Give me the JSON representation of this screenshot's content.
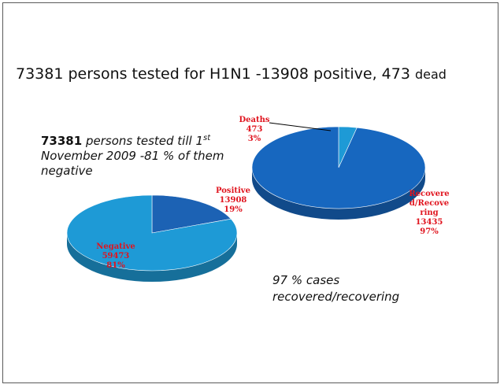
{
  "title": {
    "main": "73381   persons tested for H1N1 -13908 positive, 473",
    "dead": "dead"
  },
  "left_note": {
    "number": "73381",
    "text_a": "persons tested till 1",
    "sup": "st",
    "text_b": "November  2009 -81 % of them negative"
  },
  "right_note": "97 % cases recovered/recovering",
  "colors": {
    "negative": "#1e9ad6",
    "positive": "#1c62b4",
    "recovered": "#1767bf",
    "deaths": "#1e9ad6",
    "label": "#e0141e"
  },
  "chart_data": [
    {
      "type": "pie",
      "title": "",
      "slices": [
        {
          "name": "Positive",
          "value": 13908,
          "percent": "19%",
          "label_lines": [
            "Positive",
            "13908",
            "19%"
          ]
        },
        {
          "name": "Negative",
          "value": 59473,
          "percent": "81%",
          "label_lines": [
            "Negative",
            "59473",
            "81%"
          ]
        }
      ]
    },
    {
      "type": "pie",
      "title": "",
      "slices": [
        {
          "name": "Deaths",
          "value": 473,
          "percent": "3%",
          "label_lines": [
            "Deaths",
            "473",
            "3%"
          ]
        },
        {
          "name": "Recovered/Recovering",
          "value": 13435,
          "percent": "97%",
          "label_lines": [
            "Recovere",
            "d/Recove",
            "ring",
            "13435",
            "97%"
          ]
        }
      ]
    }
  ]
}
